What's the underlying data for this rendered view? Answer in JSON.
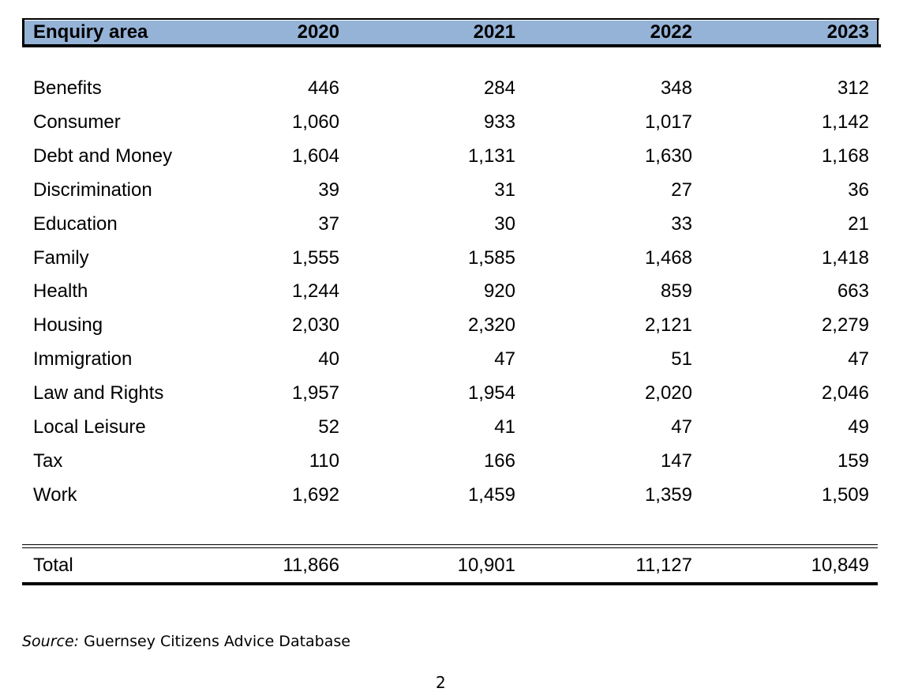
{
  "table": {
    "header": [
      "Enquiry area",
      "2020",
      "2021",
      "2022",
      "2023"
    ],
    "rows": [
      [
        "Benefits",
        "446",
        "284",
        "348",
        "312"
      ],
      [
        "Consumer",
        "1,060",
        "933",
        "1,017",
        "1,142"
      ],
      [
        "Debt and Money",
        "1,604",
        "1,131",
        "1,630",
        "1,168"
      ],
      [
        "Discrimination",
        "39",
        "31",
        "27",
        "36"
      ],
      [
        "Education",
        "37",
        "30",
        "33",
        "21"
      ],
      [
        "Family",
        "1,555",
        "1,585",
        "1,468",
        "1,418"
      ],
      [
        "Health",
        "1,244",
        "920",
        "859",
        "663"
      ],
      [
        "Housing",
        "2,030",
        "2,320",
        "2,121",
        "2,279"
      ],
      [
        "Immigration",
        "40",
        "47",
        "51",
        "47"
      ],
      [
        "Law and Rights",
        "1,957",
        "1,954",
        "2,020",
        "2,046"
      ],
      [
        "Local Leisure",
        "52",
        "41",
        "47",
        "49"
      ],
      [
        "Tax",
        "110",
        "166",
        "147",
        "159"
      ],
      [
        "Work",
        "1,692",
        "1,459",
        "1,359",
        "1,509"
      ]
    ],
    "total": [
      "Total",
      "11,866",
      "10,901",
      "11,127",
      "10,849"
    ]
  },
  "source": {
    "label": "Source:",
    "text": "Guernsey Citizens Advice Database"
  },
  "page_number": "2"
}
